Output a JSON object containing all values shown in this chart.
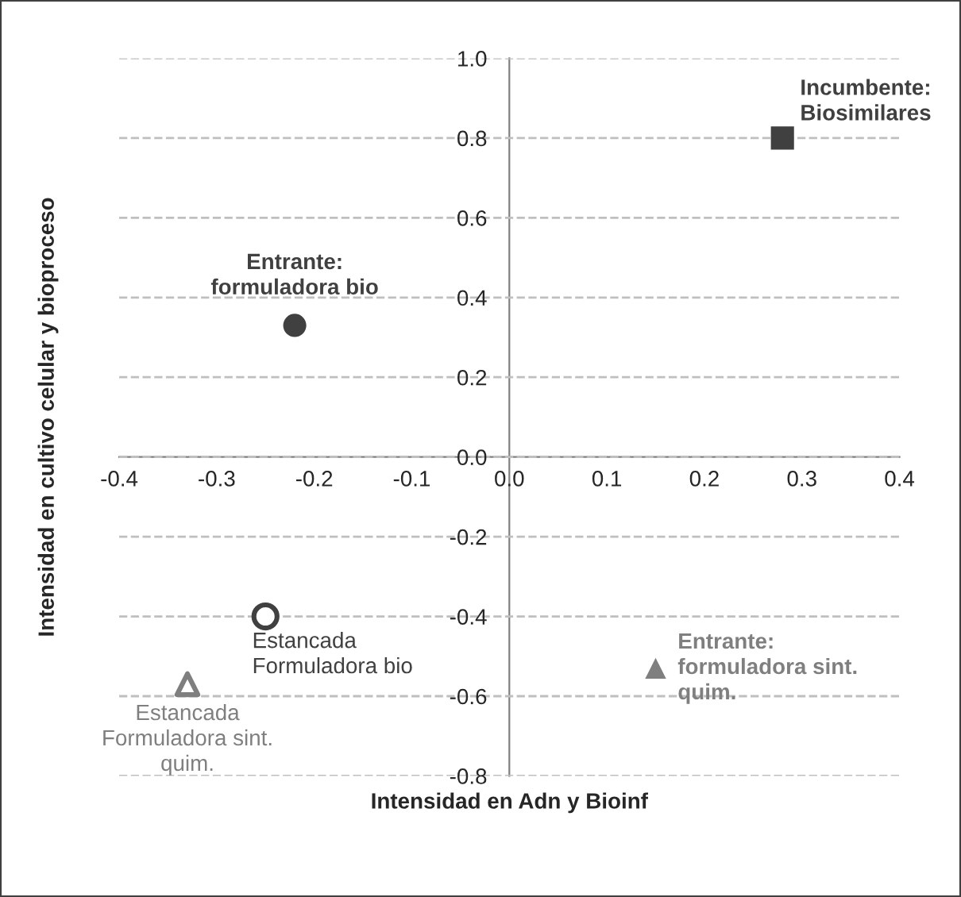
{
  "chart_data": {
    "type": "scatter",
    "xlabel": "Intensidad en Adn y Bioinf",
    "ylabel": "Intensidad en cultivo celular y bioproceso",
    "xlim": [
      -0.4,
      0.4
    ],
    "xticks": [
      -0.4,
      -0.3,
      -0.2,
      -0.1,
      {
        "value": 0,
        "label": "0.0"
      },
      0.1,
      0.2,
      0.3,
      0.4
    ],
    "ylim": [
      -0.8,
      1.0
    ],
    "yticks": [
      -0.8,
      -0.6,
      -0.4,
      -0.2,
      {
        "value": 0,
        "label": "0.0"
      },
      0.2,
      0.4,
      0.6,
      0.8,
      {
        "value": 1,
        "label": "1.0"
      }
    ],
    "grid": "y",
    "legend": false,
    "series": [
      {
        "name": "Incumbente:\nBiosimilares",
        "color": "#404040",
        "marker": "square",
        "x": [
          0.28
        ],
        "values": [
          0.8
        ]
      },
      {
        "name": "Entrante:\nformuladora bio",
        "color": "#404040",
        "marker": "circle",
        "x": [
          -0.22
        ],
        "values": [
          0.33
        ]
      },
      {
        "name": "Estancada\nFormuladora bio",
        "color": "#404040",
        "marker": "circle",
        "x": [
          -0.25
        ],
        "values": [
          -0.4
        ]
      },
      {
        "name": "Entrante:\nformuladora sint.\nquim.",
        "color": "#7f7f7f",
        "marker": "triangle",
        "x": [
          0.15
        ],
        "values": [
          -0.53
        ]
      },
      {
        "name": "Estancada\nFormuladora sint.\nquim.",
        "color": "#7f7f7f",
        "marker": "triangle",
        "x": [
          -0.33
        ],
        "values": [
          -0.57
        ]
      }
    ]
  }
}
